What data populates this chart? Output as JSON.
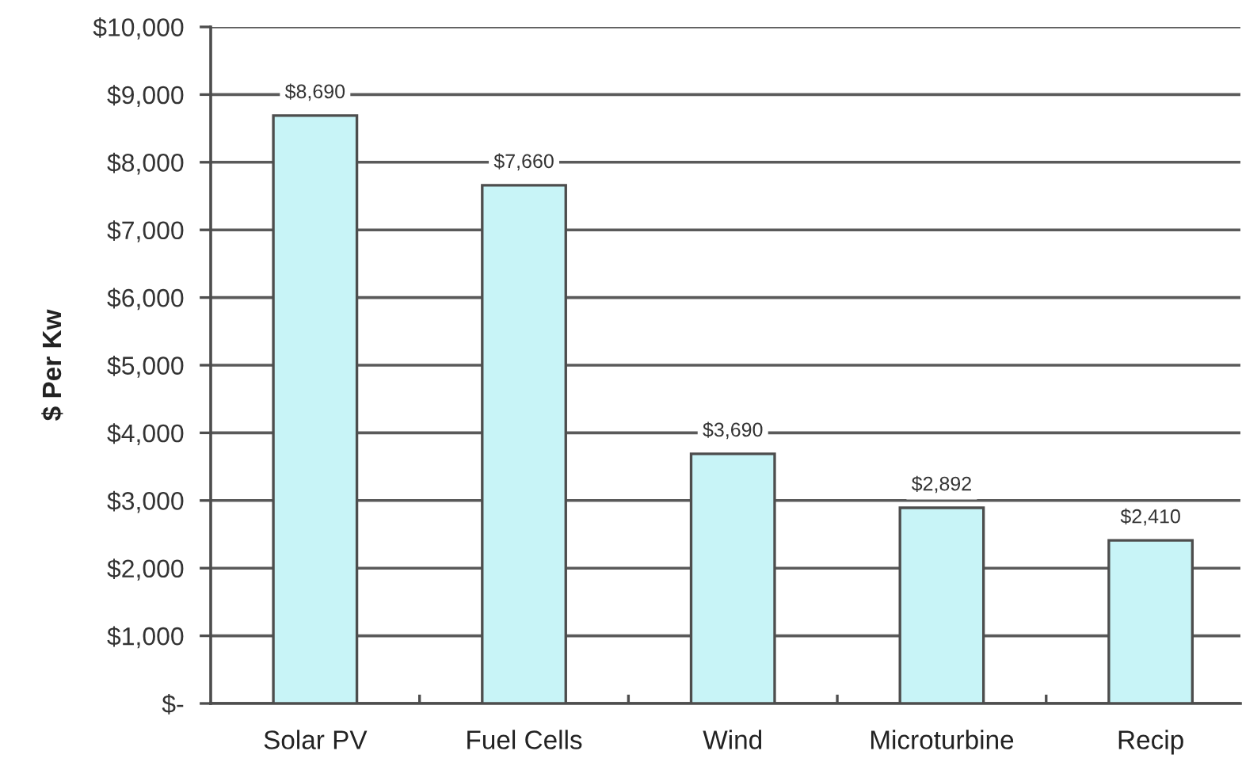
{
  "chart_data": {
    "type": "bar",
    "categories": [
      "Solar PV",
      "Fuel Cells",
      "Wind",
      "Microturbine",
      "Recip"
    ],
    "values": [
      8690,
      7660,
      3690,
      2892,
      2410
    ],
    "value_labels": [
      "$8,690",
      "$7,660",
      "$3,690",
      "$2,892",
      "$2,410"
    ],
    "color": "#c8f4f7",
    "ylabel": "$ Per Kw",
    "ylim": [
      0,
      10000
    ],
    "yticks": [
      {
        "value": 0,
        "label": "$-"
      },
      {
        "value": 1000,
        "label": "$1,000"
      },
      {
        "value": 2000,
        "label": "$2,000"
      },
      {
        "value": 3000,
        "label": "$3,000"
      },
      {
        "value": 4000,
        "label": "$4,000"
      },
      {
        "value": 5000,
        "label": "$5,000"
      },
      {
        "value": 6000,
        "label": "$6,000"
      },
      {
        "value": 7000,
        "label": "$7,000"
      },
      {
        "value": 8000,
        "label": "$8,000"
      },
      {
        "value": 9000,
        "label": "$9,000"
      },
      {
        "value": 10000,
        "label": "$10,000"
      }
    ],
    "grid": "y"
  }
}
